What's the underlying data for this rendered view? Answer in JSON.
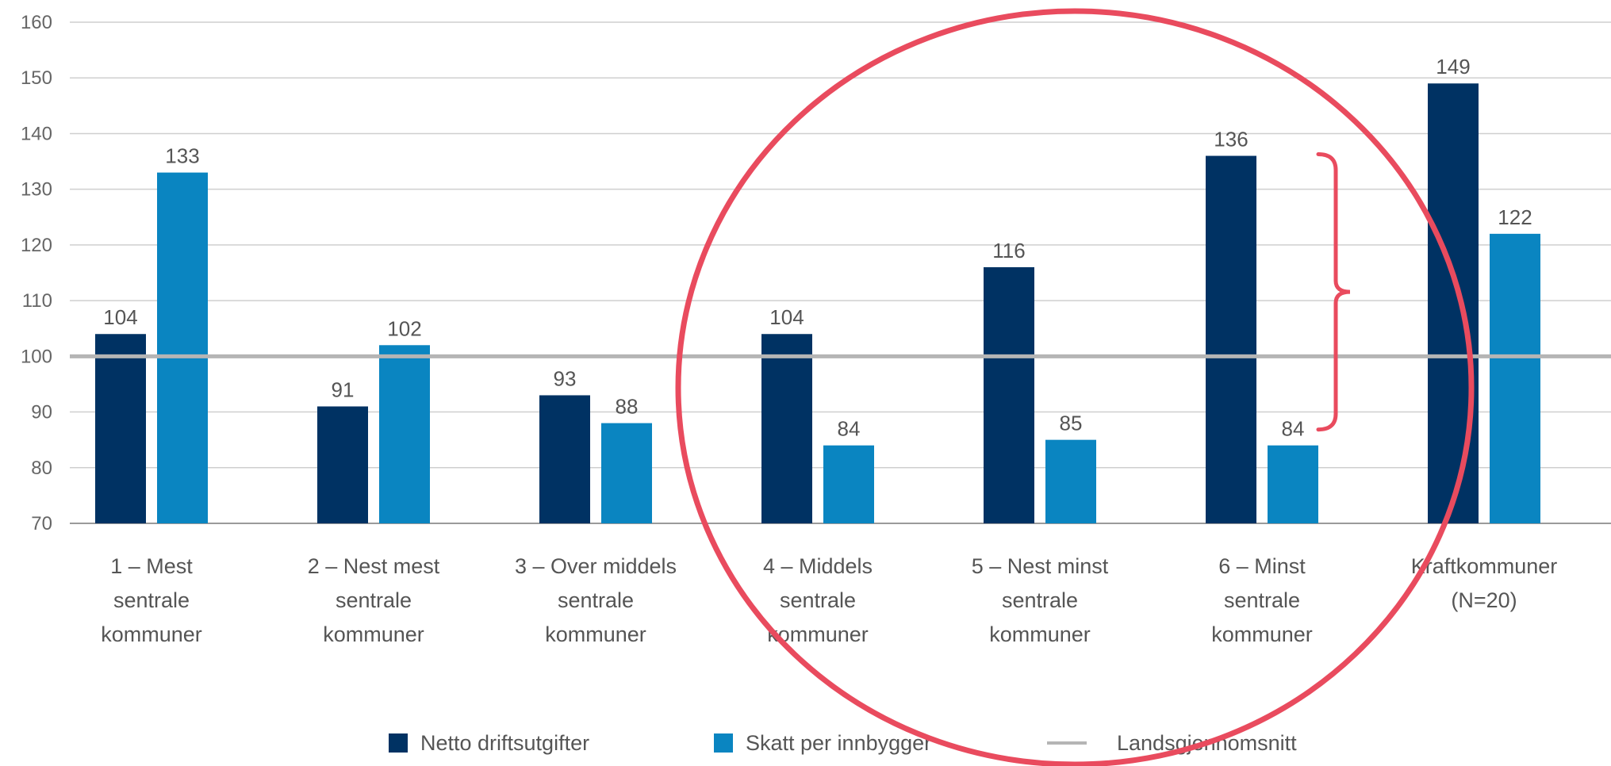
{
  "chart_data": {
    "type": "bar",
    "categories": [
      [
        "1 – Mest",
        "sentrale",
        "kommuner"
      ],
      [
        "2 – Nest mest",
        "sentrale",
        "kommuner"
      ],
      [
        "3 – Over middels",
        "sentrale",
        "kommuner"
      ],
      [
        "4 – Middels",
        "sentrale",
        "kommuner"
      ],
      [
        "5 – Nest minst",
        "sentrale",
        "kommuner"
      ],
      [
        "6 – Minst",
        "sentrale",
        "kommuner"
      ],
      [
        "Kraftkommuner",
        "(N=20)"
      ]
    ],
    "series": [
      {
        "name": "Netto driftsutgifter",
        "color": "#003263",
        "values": [
          104,
          91,
          93,
          104,
          116,
          136,
          149
        ]
      },
      {
        "name": "Skatt per innbygger",
        "color": "#0a85c1",
        "values": [
          133,
          102,
          88,
          84,
          85,
          84,
          122
        ]
      }
    ],
    "reference_line": {
      "name": "Landsgjennomsnitt",
      "value": 100,
      "color": "#b5b5b5"
    },
    "ylim": [
      70,
      160
    ],
    "yticks": [
      70,
      80,
      90,
      100,
      110,
      120,
      130,
      140,
      150,
      160
    ],
    "grid": true,
    "legend": "bottom",
    "title": "",
    "xlabel": "",
    "ylabel": ""
  },
  "annotations": {
    "highlight_circle": {
      "color": "#e94b5e"
    },
    "bracket": {
      "color": "#e94b5e",
      "between": [
        136,
        84
      ]
    }
  }
}
